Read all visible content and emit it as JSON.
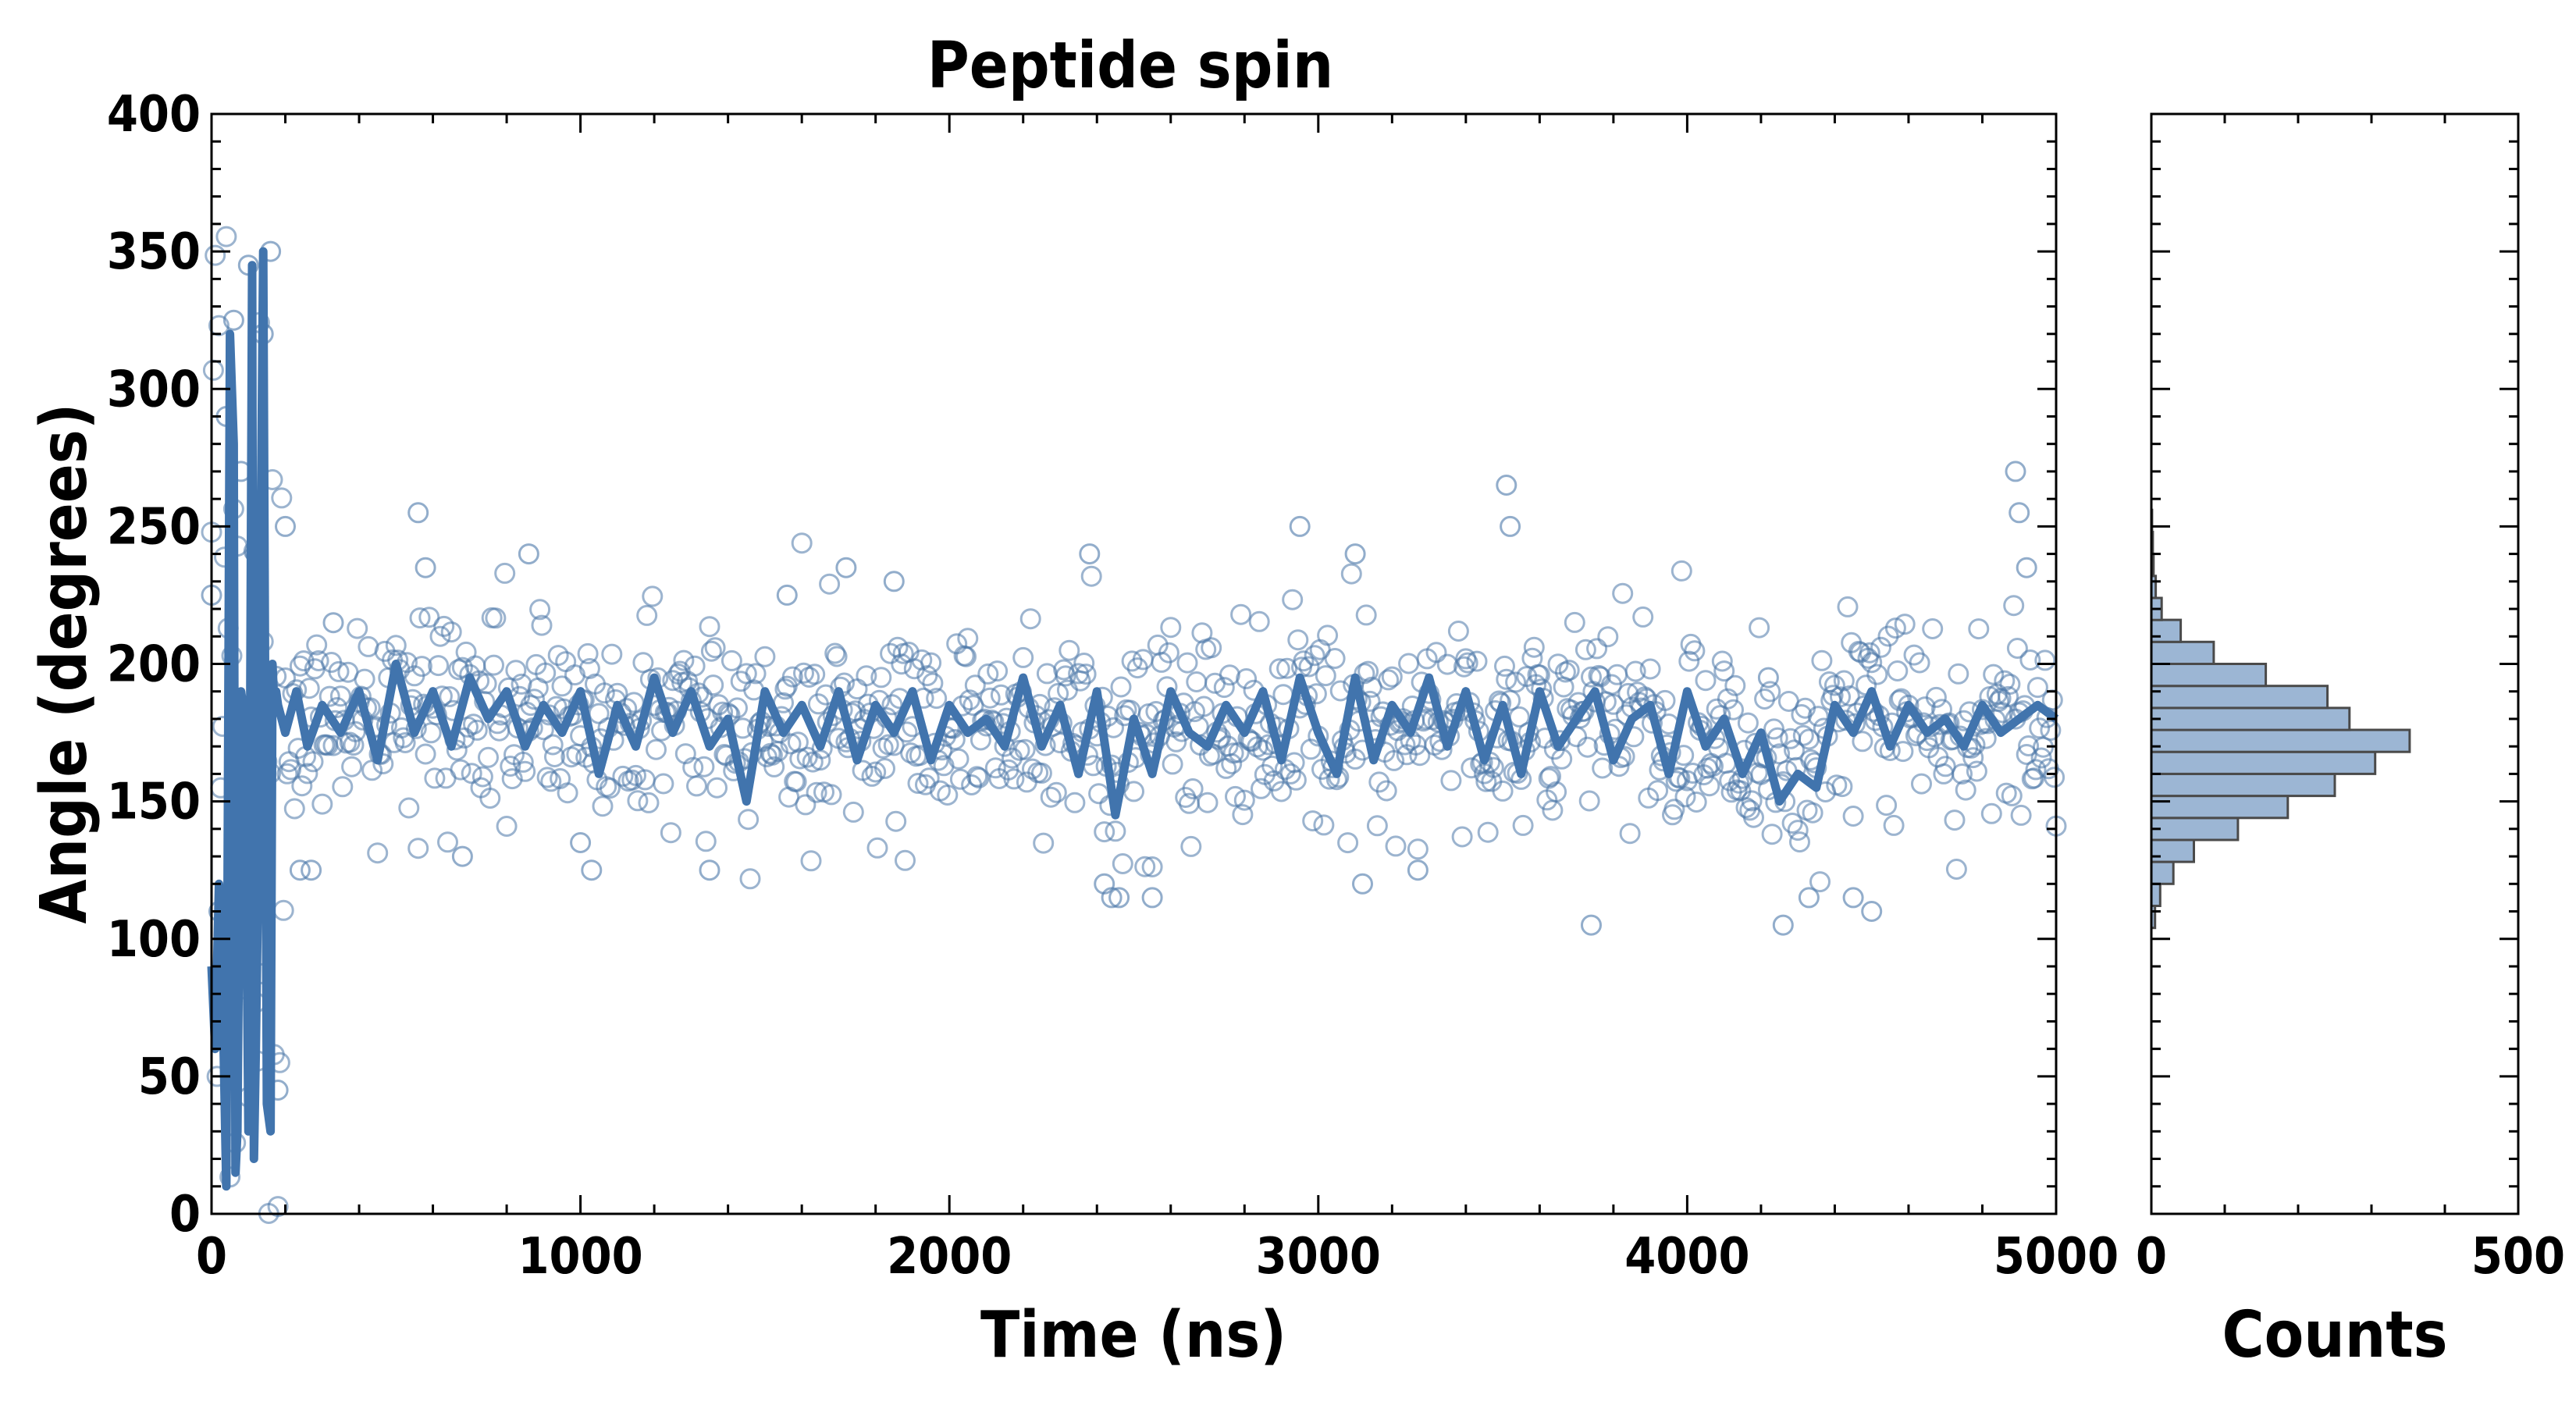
{
  "figure": {
    "title": "Peptide spin",
    "background": "#ffffff"
  },
  "chart_data": [
    {
      "type": "scatter",
      "panel": "main",
      "title": "Peptide spin",
      "xlabel": "Time (ns)",
      "ylabel": "Angle (degrees)",
      "xlim": [
        0,
        5000
      ],
      "ylim": [
        0,
        400
      ],
      "x_ticks": [
        0,
        1000,
        2000,
        3000,
        4000,
        5000
      ],
      "y_ticks": [
        0,
        50,
        100,
        150,
        200,
        250,
        300,
        350,
        400
      ],
      "grid": false,
      "legend": "none",
      "sampling_interval_ns": 5,
      "colors": {
        "points": "#4a76a8",
        "line": "#4174ad"
      },
      "series": [
        {
          "kind": "points",
          "marker": "open-circle",
          "description_equilibrium_mean": 180,
          "x": [
            0,
            20,
            40,
            60,
            80,
            100,
            120,
            140,
            160,
            180,
            200,
            240,
            270,
            330,
            560,
            580,
            680,
            860,
            1000,
            1030,
            1350,
            1560,
            1720,
            1850,
            2380,
            2420,
            2440,
            2460,
            2550,
            2950,
            3100,
            3120,
            3270,
            3510,
            3520,
            3740,
            4220,
            4260,
            4330,
            4450,
            4500,
            4890,
            4900,
            4920
          ],
          "y": [
            225,
            110,
            290,
            325,
            270,
            345,
            240,
            320,
            350,
            45,
            250,
            125,
            125,
            215,
            255,
            235,
            130,
            240,
            135,
            125,
            125,
            225,
            235,
            230,
            240,
            120,
            115,
            115,
            115,
            250,
            240,
            120,
            125,
            265,
            250,
            105,
            195,
            105,
            115,
            115,
            110,
            270,
            255,
            235
          ]
        },
        {
          "kind": "line",
          "description": "rolling average",
          "x": [
            0,
            10,
            20,
            30,
            40,
            50,
            55,
            60,
            65,
            70,
            80,
            90,
            100,
            110,
            115,
            120,
            125,
            130,
            140,
            150,
            160,
            165,
            170,
            175,
            180,
            190,
            200,
            230,
            260,
            300,
            350,
            400,
            450,
            500,
            550,
            600,
            650,
            700,
            750,
            800,
            850,
            900,
            950,
            1000,
            1050,
            1100,
            1150,
            1200,
            1250,
            1300,
            1350,
            1400,
            1450,
            1500,
            1550,
            1600,
            1650,
            1700,
            1750,
            1800,
            1850,
            1900,
            1950,
            2000,
            2050,
            2100,
            2150,
            2200,
            2250,
            2300,
            2350,
            2400,
            2450,
            2500,
            2550,
            2600,
            2650,
            2700,
            2750,
            2800,
            2850,
            2900,
            2950,
            3000,
            3050,
            3100,
            3150,
            3200,
            3250,
            3300,
            3350,
            3400,
            3450,
            3500,
            3550,
            3600,
            3650,
            3700,
            3750,
            3800,
            3850,
            3900,
            3950,
            4000,
            4050,
            4100,
            4150,
            4200,
            4250,
            4300,
            4350,
            4400,
            4450,
            4500,
            4550,
            4600,
            4650,
            4700,
            4750,
            4800,
            4850,
            4900,
            4950,
            5000
          ],
          "y": [
            90,
            60,
            120,
            80,
            10,
            320,
            300,
            280,
            15,
            30,
            190,
            180,
            30,
            345,
            20,
            60,
            110,
            190,
            350,
            40,
            30,
            200,
            185,
            190,
            185,
            180,
            175,
            190,
            170,
            185,
            175,
            190,
            165,
            200,
            175,
            190,
            170,
            195,
            180,
            190,
            170,
            185,
            175,
            190,
            160,
            185,
            170,
            195,
            175,
            190,
            170,
            180,
            150,
            190,
            175,
            185,
            170,
            190,
            165,
            185,
            175,
            190,
            165,
            185,
            175,
            180,
            170,
            195,
            170,
            185,
            160,
            190,
            145,
            180,
            160,
            190,
            175,
            170,
            185,
            175,
            190,
            165,
            195,
            175,
            160,
            195,
            165,
            185,
            175,
            195,
            170,
            190,
            165,
            185,
            160,
            190,
            170,
            180,
            190,
            165,
            180,
            185,
            160,
            190,
            170,
            180,
            160,
            175,
            150,
            160,
            155,
            185,
            175,
            190,
            170,
            185,
            175,
            180,
            170,
            185,
            175,
            180,
            185,
            180
          ]
        }
      ]
    },
    {
      "type": "bar",
      "panel": "histogram",
      "orientation": "horizontal",
      "xlabel": "Counts",
      "ylabel": "",
      "xlim": [
        0,
        500
      ],
      "ylim": [
        0,
        400
      ],
      "x_ticks": [
        0,
        500
      ],
      "grid": false,
      "colors": {
        "fill": "#9cb6d4",
        "edge": "#4a4a4a"
      },
      "bin_width": 8,
      "bins_lower": [
        104,
        112,
        120,
        128,
        136,
        144,
        152,
        160,
        168,
        176,
        184,
        192,
        200,
        208,
        216,
        224,
        232,
        240,
        248
      ],
      "counts": [
        5,
        12,
        30,
        58,
        118,
        186,
        250,
        305,
        352,
        270,
        240,
        156,
        85,
        40,
        14,
        6,
        3,
        2,
        1
      ]
    }
  ]
}
